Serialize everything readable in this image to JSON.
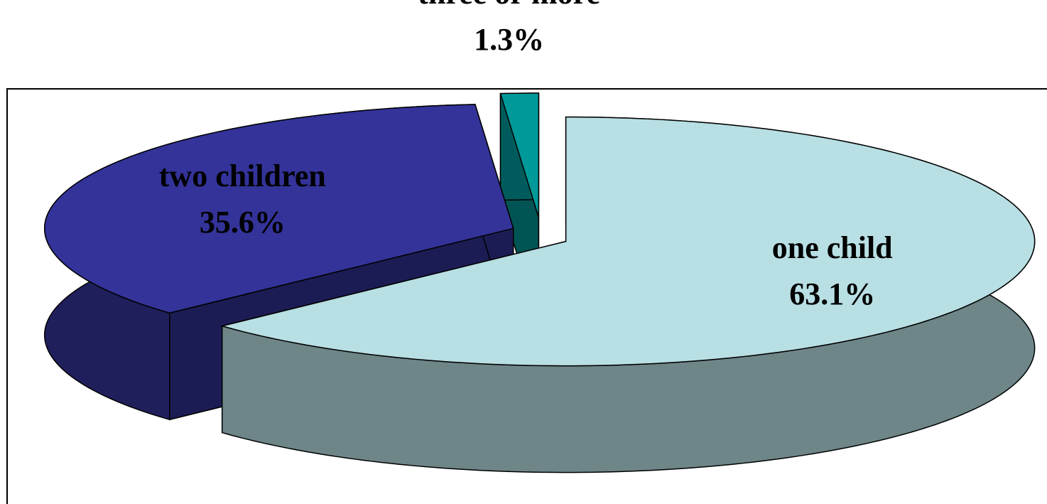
{
  "chart_data": {
    "type": "pie",
    "categories": [
      "one child",
      "two children",
      "three or more"
    ],
    "values": [
      63.1,
      35.6,
      1.3
    ],
    "value_labels": [
      "63.1%",
      "35.6%",
      "1.3%"
    ],
    "colors": [
      "#b8dfe3",
      "#333399",
      "#009999"
    ]
  }
}
